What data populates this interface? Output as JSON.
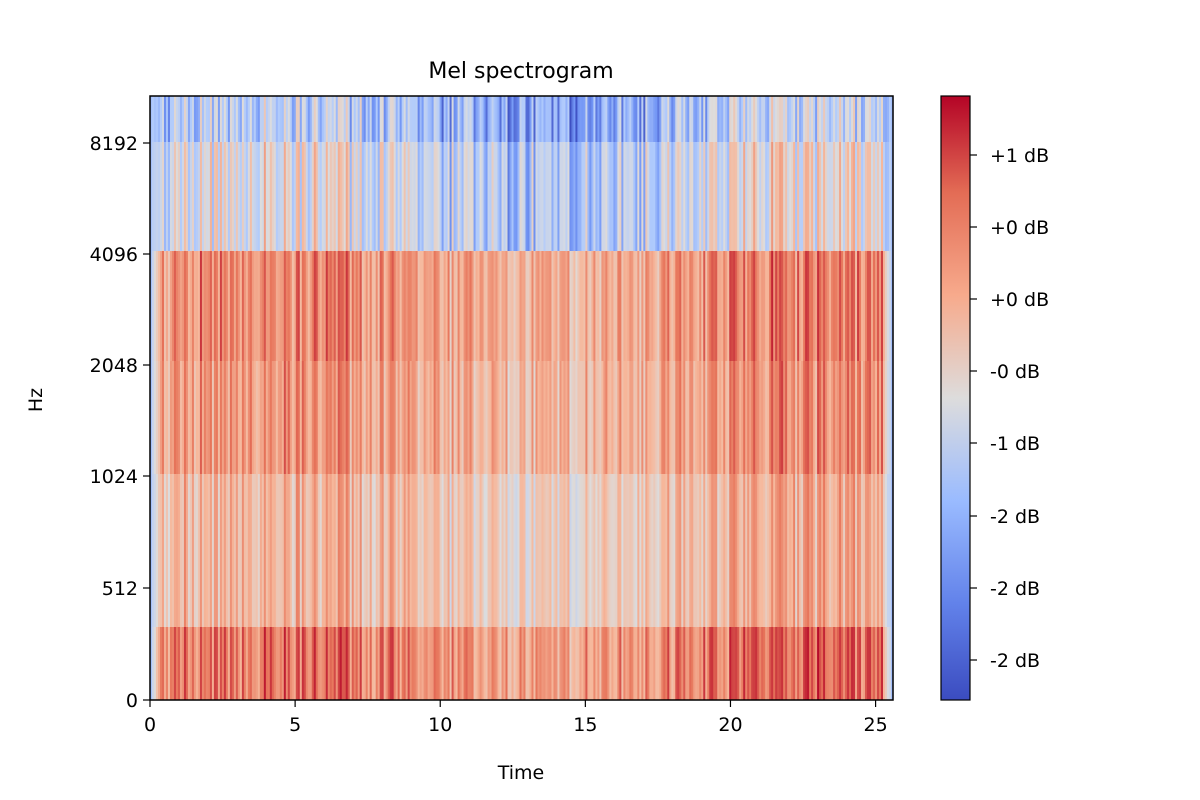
{
  "chart_data": {
    "type": "heatmap",
    "title": "Mel spectrogram",
    "xlabel": "Time",
    "ylabel": "Hz",
    "xlim": [
      0,
      25.6
    ],
    "x_ticks": [
      0,
      5,
      10,
      15,
      20,
      25
    ],
    "x_tick_labels": [
      "0",
      "5",
      "10",
      "15",
      "20",
      "25"
    ],
    "y_tick_labels": [
      "0",
      "512",
      "1024",
      "2048",
      "4096",
      "8192"
    ],
    "y_bands": [
      {
        "from": "0",
        "to": "512 (lower part)",
        "mean_level": 0.77
      },
      {
        "from": "512 (lower part)",
        "to": "1024",
        "mean_level": 0.62
      },
      {
        "from": "1024",
        "to": "2048",
        "mean_level": 0.7
      },
      {
        "from": "2048",
        "to": "4096",
        "mean_level": 0.73
      },
      {
        "from": "4096",
        "to": "8192",
        "mean_level": 0.42
      },
      {
        "from": "8192",
        "to": "top",
        "mean_level": 0.3
      }
    ],
    "colormap": "coolwarm",
    "colorbar": {
      "tick_labels": [
        "+1 dB",
        "+0 dB",
        "+0 dB",
        "-0 dB",
        "-1 dB",
        "-2 dB",
        "-2 dB",
        "-2 dB"
      ],
      "colors": [
        "#3b4cc0",
        "#7396f5",
        "#b1cbfc",
        "#dddcdc",
        "#f6b89c",
        "#e7755b",
        "#b40426"
      ]
    },
    "grid": false
  }
}
